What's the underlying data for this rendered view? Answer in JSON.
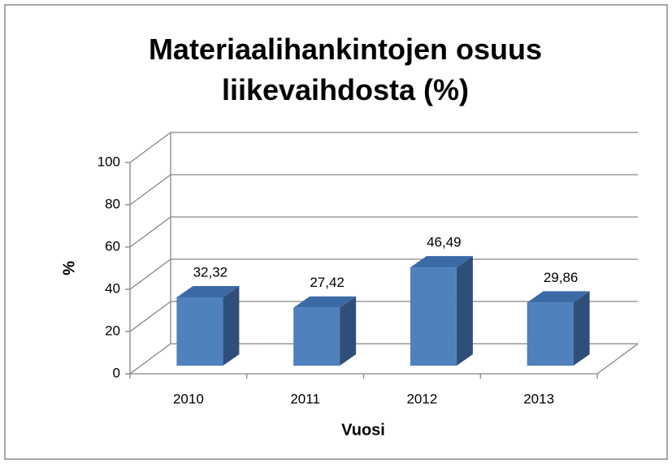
{
  "chart_data": {
    "type": "bar3d",
    "title": "Materiaalihankintojen osuus liikevaihdosta (%)",
    "x_label": "Vuosi",
    "y_label": "%",
    "categories": [
      "2010",
      "2011",
      "2012",
      "2013"
    ],
    "values": [
      32.32,
      27.42,
      46.49,
      29.86
    ],
    "value_labels": [
      "32,32",
      "27,42",
      "46,49",
      "29,86"
    ],
    "color": "#4f81bd",
    "ylim": [
      0,
      100
    ],
    "yticks": [
      0,
      20,
      40,
      60,
      80,
      100
    ],
    "grid": true
  }
}
